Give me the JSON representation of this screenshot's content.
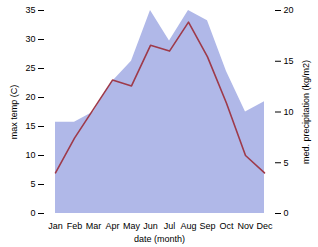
{
  "chart_data": {
    "type": "line",
    "categories": [
      "Jan",
      "Feb",
      "Mar",
      "Apr",
      "May",
      "Jun",
      "Jul",
      "Aug",
      "Sep",
      "Oct",
      "Nov",
      "Dec"
    ],
    "xlabel": "date (month)",
    "ylabel": "max temp (C)",
    "y2label": "med. precipitation (kg/m2)",
    "series": [
      {
        "type": "area",
        "axis": "y2",
        "color": "#b0b8e8",
        "values": [
          9,
          9,
          10,
          13,
          15,
          20,
          17,
          20,
          19,
          14,
          10,
          11
        ]
      },
      {
        "type": "line",
        "color": "#9e3a4a",
        "values": [
          7,
          13,
          18,
          23,
          22,
          29,
          28,
          33,
          27,
          19,
          10,
          7
        ]
      }
    ],
    "ylim": [
      0,
      35
    ],
    "yticks": [
      0,
      5,
      10,
      15,
      20,
      25,
      30,
      35
    ],
    "y2lim": [
      0,
      20
    ],
    "y2ticks": [
      0,
      5,
      10,
      15,
      20
    ],
    "grid": false
  }
}
